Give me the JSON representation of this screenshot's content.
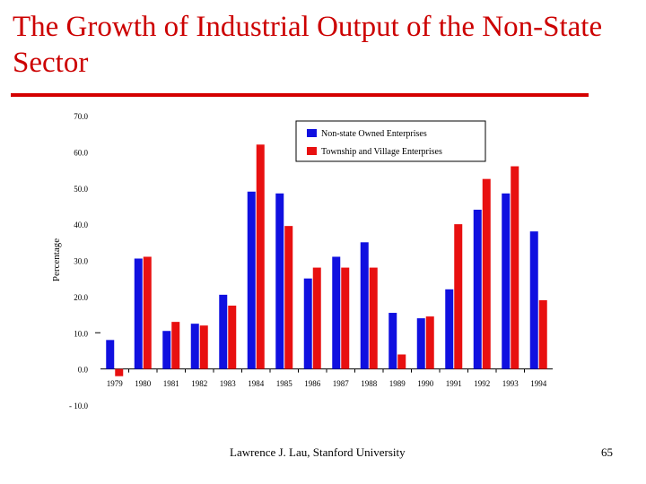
{
  "slide": {
    "title": "The Growth of Industrial Output of the Non-State Sector",
    "footer": "Lawrence J. Lau, Stanford University",
    "page_number": "65"
  },
  "colors": {
    "title": "#cc0000",
    "rule": "#d40000",
    "series1": "#1010e0",
    "series2": "#e81010"
  },
  "chart_data": {
    "type": "bar",
    "title": "",
    "xlabel": "",
    "ylabel": "Percentage",
    "ylim": [
      -10,
      70
    ],
    "yticks": [
      "- 10.0",
      "0.0",
      "10.0",
      "20.0",
      "30.0",
      "40.0",
      "50.0",
      "60.0",
      "70.0"
    ],
    "categories": [
      "1979",
      "1980",
      "1981",
      "1982",
      "1983",
      "1984",
      "1985",
      "1986",
      "1987",
      "1988",
      "1989",
      "1990",
      "1991",
      "1992",
      "1993",
      "1994"
    ],
    "series": [
      {
        "name": "Non-state Owned Enterprises",
        "values": [
          8,
          30.5,
          10.5,
          12.5,
          20.5,
          49,
          48.5,
          25,
          31,
          35,
          15.5,
          14,
          22,
          44,
          48.5,
          38
        ]
      },
      {
        "name": "Township and Village Enterprises",
        "values": [
          -2,
          31,
          13,
          12,
          17.5,
          62,
          39.5,
          28,
          28,
          28,
          4,
          14.5,
          40,
          52.5,
          56,
          19
        ]
      }
    ],
    "legend_position": "top-right"
  }
}
